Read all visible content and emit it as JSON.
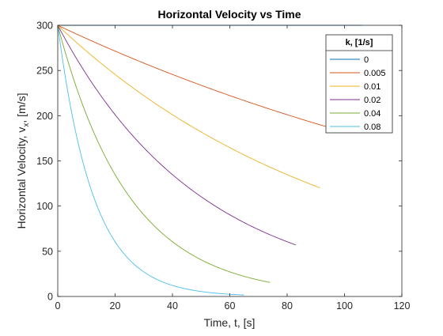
{
  "chart_data": {
    "type": "line",
    "title": "Horizontal Velocity vs Time",
    "xlabel_main": "Time, t, [s]",
    "ylabel_main": "Horizontal Velocity, v",
    "ylabel_sub": "x",
    "ylabel_tail": ", [m/s]",
    "xlim": [
      0,
      120
    ],
    "ylim": [
      0,
      300
    ],
    "xticks": [
      0,
      20,
      40,
      60,
      80,
      100,
      120
    ],
    "yticks": [
      0,
      50,
      100,
      150,
      200,
      250,
      300
    ],
    "grid": false,
    "legend": {
      "title": "k, [1/s]",
      "placement": "top-right"
    },
    "model": "v = 300 * exp(-k * t)",
    "series": [
      {
        "name": "0",
        "k": 0,
        "t_end": 106.0,
        "color": "#0072BD"
      },
      {
        "name": "0.005",
        "k": 0.005,
        "t_end": 99.0,
        "color": "#D95319"
      },
      {
        "name": "0.01",
        "k": 0.01,
        "t_end": 91.5,
        "color": "#EDB120"
      },
      {
        "name": "0.02",
        "k": 0.02,
        "t_end": 83.0,
        "color": "#7E2F8E"
      },
      {
        "name": "0.04",
        "k": 0.04,
        "t_end": 74.0,
        "color": "#77AC30"
      },
      {
        "name": "0.08",
        "k": 0.08,
        "t_end": 65.0,
        "color": "#4DBEEE"
      }
    ]
  }
}
